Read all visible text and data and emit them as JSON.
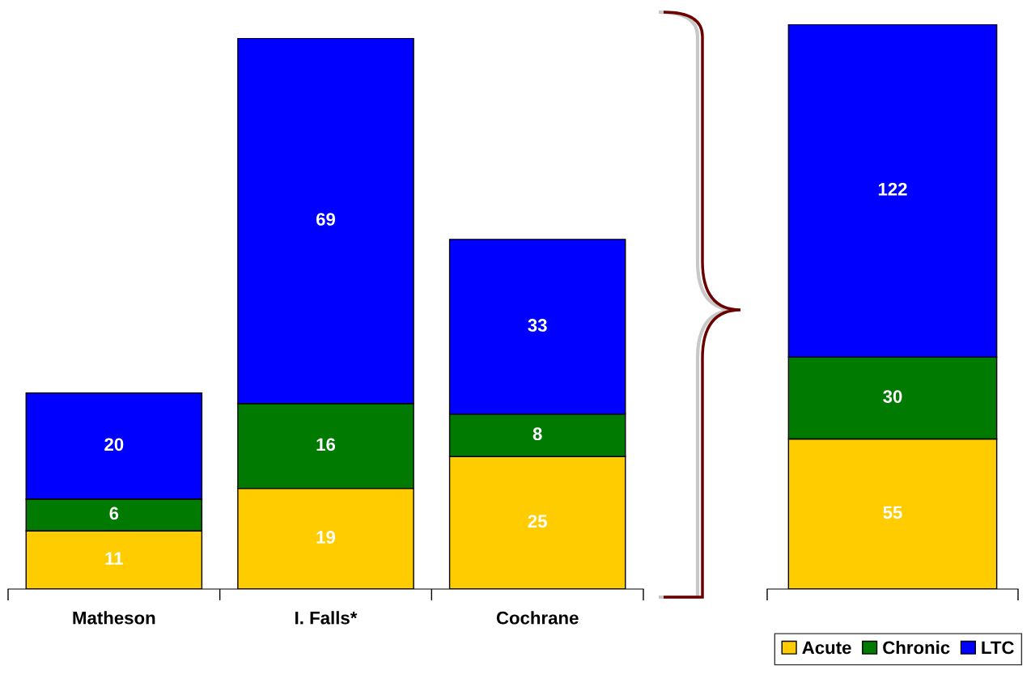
{
  "chart_data": [
    {
      "type": "bar",
      "stacked": true,
      "categories": [
        "Matheson",
        "I. Falls*",
        "Cochrane"
      ],
      "data_labels": true,
      "tick_labels": "x",
      "series": [
        {
          "color": "#ffcc00",
          "values": [
            11,
            19,
            25
          ]
        },
        {
          "color": "#007a00",
          "values": [
            6,
            16,
            8
          ]
        },
        {
          "color": "#0000ff",
          "values": [
            20,
            69,
            33
          ]
        }
      ]
    },
    {
      "type": "bar",
      "stacked": true,
      "categories": [
        null
      ],
      "data_labels": true,
      "tick_labels": false,
      "legend": "bottom right",
      "series": [
        {
          "name": "Acute",
          "color": "#ffcc00",
          "values": [
            55
          ]
        },
        {
          "name": "Chronic",
          "color": "#007a00",
          "values": [
            30
          ]
        },
        {
          "name": "LTC",
          "color": "#0000ff",
          "values": [
            122
          ]
        }
      ]
    }
  ]
}
